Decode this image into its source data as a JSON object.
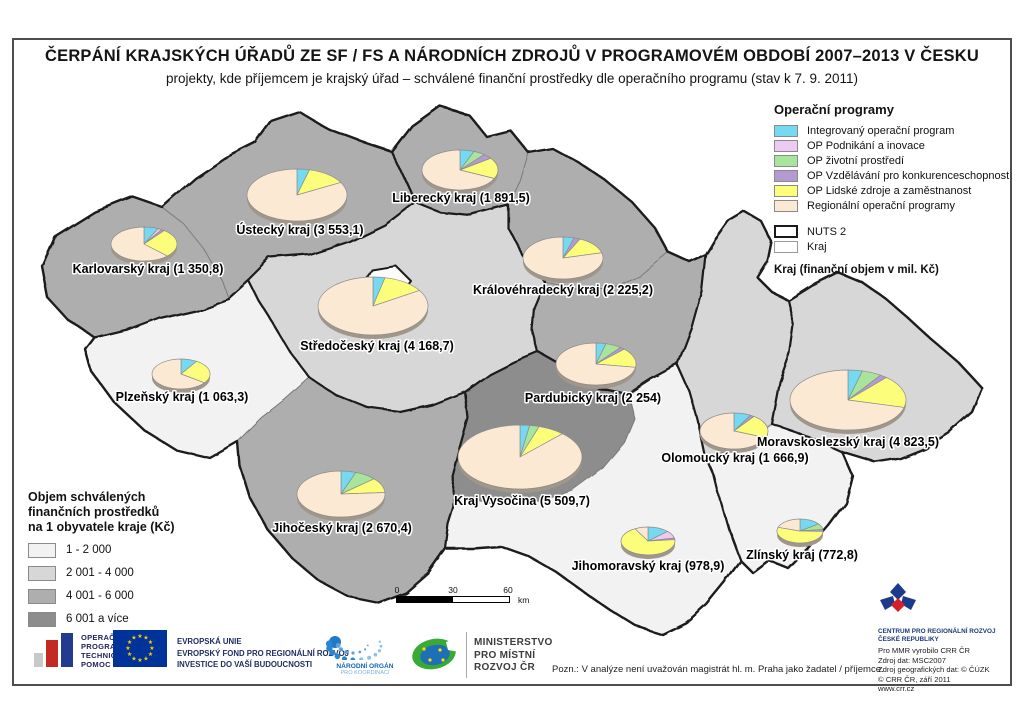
{
  "title": "ČERPÁNÍ KRAJSKÝCH ÚŘADŮ ZE SF / FS A NÁRODNÍCH ZDROJŮ V PROGRAMOVÉM OBDOBÍ 2007–2013 V ČESKU",
  "subtitle": "projekty, kde příjemcem je krajský úřad – schválené finanční prostředky dle operačního programu (stav k 7. 9. 2011)",
  "legend_programs": {
    "title": "Operační programy",
    "items": [
      {
        "label": "Integrovaný operační program",
        "color": "#76d9f2"
      },
      {
        "label": "OP Podnikání a inovace",
        "color": "#eccaf2"
      },
      {
        "label": "OP životní prostředí",
        "color": "#a9e49c"
      },
      {
        "label": "OP Vzdělávání pro konkurenceschopnost",
        "color": "#b49ad2"
      },
      {
        "label": "OP Lidské zdroje a zaměstnanost",
        "color": "#fdfd7c"
      },
      {
        "label": "Regionální operační programy",
        "color": "#fbe9d3"
      }
    ],
    "nuts2_label": "NUTS 2",
    "kraj_label": "Kraj",
    "note": "Kraj (finanční objem v mil. Kč)"
  },
  "legend_choropleth": {
    "title_lines": [
      "Objem schválených",
      "finančních prostředků",
      "na 1 obyvatele kraje (Kč)"
    ],
    "classes": [
      {
        "label": "1 - 2 000",
        "color": "#f2f2f2"
      },
      {
        "label": "2 001 - 4 000",
        "color": "#d7d7d7"
      },
      {
        "label": "4 001 - 6 000",
        "color": "#aeaeae"
      },
      {
        "label": "6 001 a více",
        "color": "#8d8d8d"
      }
    ]
  },
  "regions": [
    {
      "id": "karlovarsky",
      "name": "Karlovarský kraj",
      "value": "1 350,8",
      "label": "Karlovarský kraj (1 350,8)",
      "per_capita_class": 3,
      "pie_shares_by_program": [
        0.07,
        0.02,
        0,
        0.015,
        0.27,
        0.625
      ]
    },
    {
      "id": "ustecky",
      "name": "Ústecký kraj",
      "value": "3 553,1",
      "label": "Ústecký kraj (3 553,1)",
      "per_capita_class": 3,
      "pie_shares_by_program": [
        0.04,
        0,
        0,
        0,
        0.13,
        0.83
      ]
    },
    {
      "id": "liberecky",
      "name": "Liberecký kraj",
      "value": "1 891,5",
      "label": "Liberecký kraj (1 891,5)",
      "per_capita_class": 3,
      "pie_shares_by_program": [
        0.06,
        0,
        0.05,
        0.04,
        0.17,
        0.68
      ]
    },
    {
      "id": "kralovehradecky",
      "name": "Královéhradecký kraj",
      "value": "2 225,2",
      "label": "Královéhradecký kraj (2 225,2)",
      "per_capita_class": 3,
      "pie_shares_by_program": [
        0.045,
        0,
        0,
        0.025,
        0.14,
        0.79
      ]
    },
    {
      "id": "pardubicky",
      "name": "Pardubický kraj",
      "value": "2 254",
      "label": "Pardubický kraj (2 254)",
      "per_capita_class": 3,
      "pie_shares_by_program": [
        0.04,
        0,
        0.065,
        0.02,
        0.15,
        0.725
      ]
    },
    {
      "id": "stredocesky",
      "name": "Středočeský kraj",
      "value": "4 168,7",
      "label": "Středočeský kraj (4 168,7)",
      "per_capita_class": 2,
      "pie_shares_by_program": [
        0.035,
        0,
        0,
        0,
        0.125,
        0.84
      ]
    },
    {
      "id": "plzensky",
      "name": "Plzeňský kraj",
      "value": "1 063,3",
      "label": "Plzeňský kraj (1 063,3)",
      "per_capita_class": 1,
      "pie_shares_by_program": [
        0.09,
        0,
        0,
        0,
        0.26,
        0.65
      ]
    },
    {
      "id": "jihocesky",
      "name": "Jihočeský kraj",
      "value": "2 670,4",
      "label": "Jihočeský kraj (2 670,4)",
      "per_capita_class": 3,
      "pie_shares_by_program": [
        0.055,
        0,
        0.08,
        0,
        0.105,
        0.76
      ]
    },
    {
      "id": "vysocina",
      "name": "Kraj Vysočina",
      "value": "5 509,7",
      "label": "Kraj Vysočina (5 509,7)",
      "per_capita_class": 4,
      "pie_shares_by_program": [
        0.025,
        0,
        0.025,
        0,
        0.07,
        0.88
      ]
    },
    {
      "id": "jihomoravsky",
      "name": "Jihomoravský kraj",
      "value": "978,9",
      "label": "Jihomoravský kraj (978,9)",
      "per_capita_class": 1,
      "pie_shares_by_program": [
        0.13,
        0.085,
        0,
        0.02,
        0.685,
        0.08
      ]
    },
    {
      "id": "zlinsky",
      "name": "Zlínský kraj",
      "value": "772,8",
      "label": "Zlínský kraj (772,8)",
      "per_capita_class": 1,
      "pie_shares_by_program": [
        0.15,
        0,
        0.08,
        0.025,
        0.545,
        0.2
      ]
    },
    {
      "id": "olomoucky",
      "name": "Olomoucký kraj",
      "value": "1 666,9",
      "label": "Olomoucký kraj (1 666,9)",
      "per_capita_class": 2,
      "pie_shares_by_program": [
        0.08,
        0,
        0,
        0.02,
        0.21,
        0.69
      ]
    },
    {
      "id": "moravskoslezsky",
      "name": "Moravskoslezský kraj",
      "value": "4 823,5",
      "label": "Moravskoslezský kraj (4 823,5)",
      "per_capita_class": 2,
      "pie_shares_by_program": [
        0.04,
        0,
        0.055,
        0.02,
        0.175,
        0.71
      ]
    }
  ],
  "scalebar": {
    "ticks": [
      "0",
      "30",
      "60"
    ],
    "unit": "km"
  },
  "note": "Pozn.: V analýze není uvažován magistrát hl. m. Praha jako žadatel / příjemce.",
  "logos": {
    "optp": {
      "lines": [
        "OPERAČNÍ",
        "PROGRAM",
        "TECHNICKÁ",
        "POMOC"
      ]
    },
    "eu": {
      "lines": [
        "EVROPSKÁ UNIE",
        "EVROPSKÝ FOND PRO REGIONÁLNÍ ROZVOJ",
        "INVESTICE DO VAŠÍ BUDOUCNOSTI"
      ]
    },
    "nok": {
      "line1": "NÁRODNÍ ORGÁN",
      "line2": "PRO KOORDINACI"
    },
    "mmr": {
      "lines": [
        "MINISTERSTVO",
        "PRO MÍSTNÍ",
        "ROZVOJ ČR"
      ]
    },
    "crr": {
      "org_lines": [
        "CENTRUM PRO REGIONÁLNÍ ROZVOJ",
        "ČESKÉ REPUBLIKY"
      ],
      "credits": [
        "Pro MMR vyrobilo CRR ČR",
        "Zdroj dat: MSC2007",
        "Zdroj geografických dat: © ČÚZK",
        "© CRR ČR, září 2011",
        "www.crr.cz"
      ]
    }
  }
}
